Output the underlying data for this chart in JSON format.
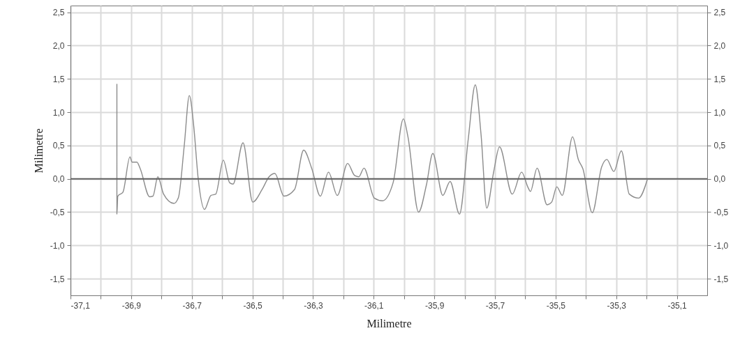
{
  "chart_data": {
    "type": "line",
    "xlabel": "Milimetre",
    "ylabel": "Milimetre",
    "xlim": [
      -37.1,
      -35.0
    ],
    "xticks": [
      {
        "value": -37.1,
        "label": "-37,1"
      },
      {
        "value": -37.0,
        "label": null
      },
      {
        "value": -36.9,
        "label": "-36,9"
      },
      {
        "value": -36.8,
        "label": null
      },
      {
        "value": -36.7,
        "label": "-36,7"
      },
      {
        "value": -36.6,
        "label": null
      },
      {
        "value": -36.5,
        "label": "-36,5"
      },
      {
        "value": -36.4,
        "label": null
      },
      {
        "value": -36.3,
        "label": "-36,3"
      },
      {
        "value": -36.2,
        "label": null
      },
      {
        "value": -36.1,
        "label": "-36,1"
      },
      {
        "value": -36.0,
        "label": null
      },
      {
        "value": -35.9,
        "label": "-35,9"
      },
      {
        "value": -35.8,
        "label": null
      },
      {
        "value": -35.7,
        "label": "-35,7"
      },
      {
        "value": -35.6,
        "label": null
      },
      {
        "value": -35.5,
        "label": "-35,5"
      },
      {
        "value": -35.4,
        "label": null
      },
      {
        "value": -35.3,
        "label": "-35,3"
      },
      {
        "value": -35.2,
        "label": null
      },
      {
        "value": -35.1,
        "label": "-35,1"
      }
    ],
    "ylim": [
      -1.75,
      2.6
    ],
    "yticks": [
      {
        "value": -1.5,
        "label": "-1,5"
      },
      {
        "value": -1.0,
        "label": "-1,0"
      },
      {
        "value": -0.5,
        "label": "-0,5"
      },
      {
        "value": 0,
        "label": "0,0"
      },
      {
        "value": 0.5,
        "label": "0,5"
      },
      {
        "value": 1.0,
        "label": "1,0"
      },
      {
        "value": 1.5,
        "label": "1,5"
      },
      {
        "value": 2.0,
        "label": "2,0"
      },
      {
        "value": 2.5,
        "label": "2,5"
      }
    ],
    "y2lim": [
      -1.75,
      2.6
    ],
    "y2ticks": [
      {
        "value": -1.5,
        "label": "-1,5"
      },
      {
        "value": -1.0,
        "label": "-1,0"
      },
      {
        "value": -0.5,
        "label": "-0,5"
      },
      {
        "value": 0,
        "label": "0,0"
      },
      {
        "value": 0.5,
        "label": "0,5"
      },
      {
        "value": 1.0,
        "label": "1,0"
      },
      {
        "value": 1.5,
        "label": "1,5"
      },
      {
        "value": 2.0,
        "label": "2,0"
      },
      {
        "value": 2.5,
        "label": "2,5"
      }
    ],
    "grid": true,
    "ref_lines": [
      {
        "axis": "y",
        "value": 0,
        "label": null,
        "color": "#606060"
      }
    ],
    "series": [
      {
        "color": "#8c8c8c",
        "x": [
          -36.947,
          -36.947,
          -36.944,
          -36.927,
          -36.904,
          -36.897,
          -36.881,
          -36.87,
          -36.839,
          -36.828,
          -36.812,
          -36.793,
          -36.759,
          -36.744,
          -36.725,
          -36.708,
          -36.694,
          -36.679,
          -36.658,
          -36.637,
          -36.621,
          -36.596,
          -36.575,
          -36.564,
          -36.531,
          -36.499,
          -36.468,
          -36.445,
          -36.426,
          -36.396,
          -36.361,
          -36.331,
          -36.304,
          -36.276,
          -36.249,
          -36.22,
          -36.186,
          -36.163,
          -36.149,
          -36.132,
          -36.098,
          -36.071,
          -36.036,
          -36.002,
          -35.987,
          -35.952,
          -35.926,
          -35.905,
          -35.872,
          -35.848,
          -35.817,
          -35.788,
          -35.765,
          -35.746,
          -35.727,
          -35.704,
          -35.685,
          -35.643,
          -35.612,
          -35.591,
          -35.583,
          -35.561,
          -35.528,
          -35.513,
          -35.496,
          -35.478,
          -35.444,
          -35.425,
          -35.41,
          -35.379,
          -35.348,
          -35.331,
          -35.308,
          -35.283,
          -35.257,
          -35.226,
          -35.198
        ],
        "values": [
          1.42,
          -0.53,
          -0.26,
          -0.2,
          0.33,
          0.25,
          0.25,
          0.15,
          -0.27,
          -0.26,
          0.03,
          -0.23,
          -0.37,
          -0.28,
          0.49,
          1.25,
          0.81,
          0.01,
          -0.46,
          -0.25,
          -0.23,
          0.28,
          -0.06,
          -0.08,
          0.54,
          -0.35,
          -0.16,
          0.03,
          0.08,
          -0.26,
          -0.16,
          0.43,
          0.15,
          -0.26,
          0.1,
          -0.25,
          0.23,
          0.05,
          0.03,
          0.16,
          -0.29,
          -0.33,
          -0.06,
          0.9,
          0.63,
          -0.5,
          -0.09,
          0.38,
          -0.25,
          -0.04,
          -0.53,
          0.6,
          1.41,
          0.67,
          -0.44,
          0.11,
          0.48,
          -0.23,
          0.1,
          -0.13,
          -0.19,
          0.16,
          -0.39,
          -0.35,
          -0.12,
          -0.25,
          0.63,
          0.29,
          0.15,
          -0.51,
          0.18,
          0.29,
          0.11,
          0.42,
          -0.23,
          -0.29,
          -0.02
        ]
      }
    ]
  }
}
